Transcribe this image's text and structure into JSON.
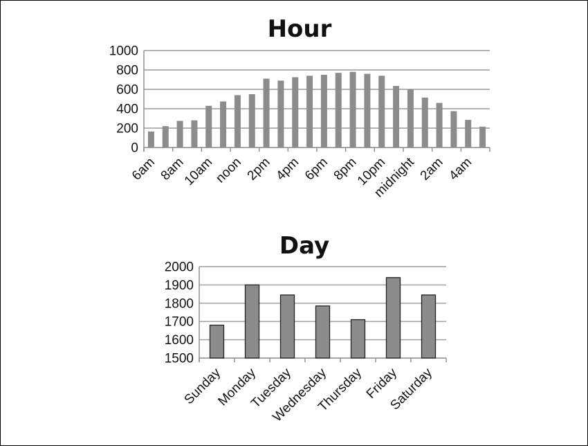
{
  "chart_data": [
    {
      "type": "bar",
      "title": "Hour",
      "xlabel": "",
      "ylabel": "",
      "ylim": [
        0,
        1000
      ],
      "yticks": [
        "0",
        "200",
        "400",
        "600",
        "800",
        "1000"
      ],
      "categories": [
        "6am",
        "7am",
        "8am",
        "9am",
        "10am",
        "11am",
        "noon",
        "1pm",
        "2pm",
        "3pm",
        "4pm",
        "5pm",
        "6pm",
        "7pm",
        "8pm",
        "9pm",
        "10pm",
        "11pm",
        "midnight",
        "1am",
        "2am",
        "3am",
        "4am",
        "5am"
      ],
      "tick_labels": [
        "6am",
        "8am",
        "10am",
        "noon",
        "2pm",
        "4pm",
        "6pm",
        "8pm",
        "10pm",
        "midnight",
        "2am",
        "4am"
      ],
      "values": [
        165,
        220,
        275,
        280,
        430,
        475,
        540,
        550,
        710,
        690,
        725,
        740,
        750,
        770,
        780,
        760,
        740,
        635,
        600,
        515,
        460,
        375,
        285,
        215
      ],
      "grid": true,
      "bar_color": "#8c8c8c"
    },
    {
      "type": "bar",
      "title": "Day",
      "xlabel": "",
      "ylabel": "",
      "ylim": [
        1500,
        2000
      ],
      "yticks": [
        "1500",
        "1600",
        "1700",
        "1800",
        "1900",
        "2000"
      ],
      "categories": [
        "Sunday",
        "Monday",
        "Tuesday",
        "Wednesday",
        "Thursday",
        "Friday",
        "Saturday"
      ],
      "tick_labels": [
        "Sunday",
        "Monday",
        "Tuesday",
        "Wednesday",
        "Thursday",
        "Friday",
        "Saturday"
      ],
      "values": [
        1680,
        1900,
        1845,
        1785,
        1710,
        1940,
        1845
      ],
      "grid": true,
      "bar_color": "#8c8c8c"
    }
  ]
}
